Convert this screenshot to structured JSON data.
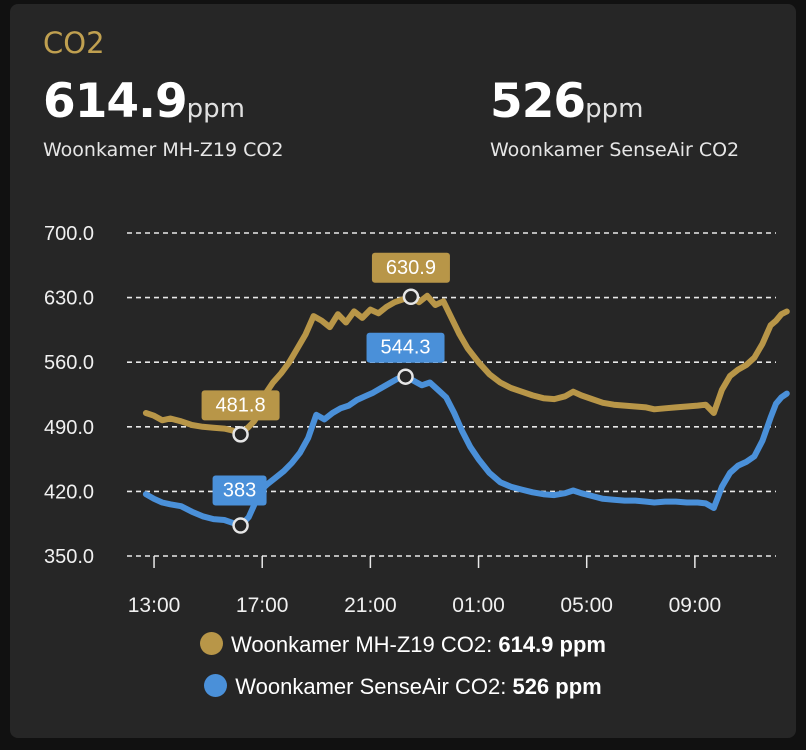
{
  "card": {
    "title": "CO2"
  },
  "stats": [
    {
      "value": "614.9",
      "unit": "ppm",
      "name": "Woonkamer MH-Z19 CO2"
    },
    {
      "value": "526",
      "unit": "ppm",
      "name": "Woonkamer SenseAir CO2"
    }
  ],
  "legend": [
    {
      "label": "Woonkamer MH-Z19 CO2:",
      "value": "614.9 ppm",
      "color": "#b89648"
    },
    {
      "label": "Woonkamer SenseAir CO2:",
      "value": "526 ppm",
      "color": "#4a90d9"
    }
  ],
  "chart_data": {
    "type": "line",
    "ylim": [
      350,
      700
    ],
    "yticks": [
      "700.0",
      "630.0",
      "560.0",
      "490.0",
      "420.0",
      "350.0"
    ],
    "ytick_values": [
      700,
      630,
      560,
      490,
      420,
      350
    ],
    "xlim": [
      12,
      36
    ],
    "xticks": [
      "13:00",
      "17:00",
      "21:00",
      "01:00",
      "05:00",
      "09:00"
    ],
    "xtick_values": [
      13,
      17,
      21,
      25,
      29,
      33
    ],
    "grid": true,
    "series": [
      {
        "name": "Woonkamer MH-Z19 CO2",
        "color": "#b89648",
        "points": [
          [
            12.7,
            505
          ],
          [
            13.0,
            502
          ],
          [
            13.3,
            497
          ],
          [
            13.6,
            499
          ],
          [
            14.0,
            496
          ],
          [
            14.4,
            492
          ],
          [
            14.8,
            490
          ],
          [
            15.2,
            489
          ],
          [
            15.6,
            488
          ],
          [
            15.9,
            486
          ],
          [
            16.2,
            482
          ],
          [
            16.5,
            490
          ],
          [
            16.7,
            496
          ],
          [
            16.9,
            505
          ],
          [
            17.1,
            525
          ],
          [
            17.4,
            538
          ],
          [
            17.7,
            548
          ],
          [
            18.0,
            560
          ],
          [
            18.3,
            575
          ],
          [
            18.6,
            590
          ],
          [
            18.9,
            610
          ],
          [
            19.2,
            605
          ],
          [
            19.5,
            598
          ],
          [
            19.8,
            612
          ],
          [
            20.1,
            603
          ],
          [
            20.4,
            615
          ],
          [
            20.7,
            608
          ],
          [
            21.0,
            617
          ],
          [
            21.3,
            613
          ],
          [
            21.6,
            620
          ],
          [
            21.9,
            625
          ],
          [
            22.2,
            628
          ],
          [
            22.5,
            630.9
          ],
          [
            22.8,
            625
          ],
          [
            23.1,
            632
          ],
          [
            23.4,
            622
          ],
          [
            23.7,
            626
          ],
          [
            24.0,
            608
          ],
          [
            24.3,
            590
          ],
          [
            24.6,
            575
          ],
          [
            25.0,
            560
          ],
          [
            25.4,
            547
          ],
          [
            25.8,
            538
          ],
          [
            26.2,
            532
          ],
          [
            26.6,
            528
          ],
          [
            27.0,
            524
          ],
          [
            27.4,
            521
          ],
          [
            27.8,
            520
          ],
          [
            28.2,
            523
          ],
          [
            28.5,
            528
          ],
          [
            28.8,
            524
          ],
          [
            29.2,
            520
          ],
          [
            29.6,
            516
          ],
          [
            30.0,
            514
          ],
          [
            30.4,
            513
          ],
          [
            30.8,
            512
          ],
          [
            31.2,
            511
          ],
          [
            31.5,
            509
          ],
          [
            31.9,
            510
          ],
          [
            32.3,
            511
          ],
          [
            32.7,
            512
          ],
          [
            33.1,
            513
          ],
          [
            33.4,
            514
          ],
          [
            33.7,
            505
          ],
          [
            34.0,
            530
          ],
          [
            34.3,
            545
          ],
          [
            34.6,
            552
          ],
          [
            34.9,
            557
          ],
          [
            35.2,
            565
          ],
          [
            35.5,
            580
          ],
          [
            35.8,
            600
          ],
          [
            36.0,
            605
          ],
          [
            36.2,
            612
          ],
          [
            36.4,
            614.9
          ]
        ]
      },
      {
        "name": "Woonkamer SenseAir CO2",
        "color": "#4a90d9",
        "points": [
          [
            12.7,
            417
          ],
          [
            13.0,
            412
          ],
          [
            13.3,
            408
          ],
          [
            13.6,
            406
          ],
          [
            14.0,
            404
          ],
          [
            14.4,
            398
          ],
          [
            14.8,
            393
          ],
          [
            15.2,
            390
          ],
          [
            15.6,
            389
          ],
          [
            15.9,
            386
          ],
          [
            16.2,
            383
          ],
          [
            16.5,
            392
          ],
          [
            16.7,
            405
          ],
          [
            16.9,
            420
          ],
          [
            17.2,
            428
          ],
          [
            17.5,
            435
          ],
          [
            17.8,
            442
          ],
          [
            18.1,
            451
          ],
          [
            18.4,
            462
          ],
          [
            18.7,
            478
          ],
          [
            19.0,
            503
          ],
          [
            19.3,
            498
          ],
          [
            19.6,
            505
          ],
          [
            19.9,
            510
          ],
          [
            20.2,
            513
          ],
          [
            20.5,
            519
          ],
          [
            20.8,
            523
          ],
          [
            21.1,
            527
          ],
          [
            21.4,
            532
          ],
          [
            21.7,
            537
          ],
          [
            22.0,
            542
          ],
          [
            22.3,
            544.3
          ],
          [
            22.6,
            540
          ],
          [
            22.9,
            535
          ],
          [
            23.2,
            538
          ],
          [
            23.5,
            530
          ],
          [
            23.8,
            522
          ],
          [
            24.1,
            505
          ],
          [
            24.4,
            485
          ],
          [
            24.7,
            468
          ],
          [
            25.0,
            455
          ],
          [
            25.4,
            440
          ],
          [
            25.8,
            430
          ],
          [
            26.2,
            425
          ],
          [
            26.6,
            422
          ],
          [
            27.0,
            419
          ],
          [
            27.4,
            417
          ],
          [
            27.8,
            416
          ],
          [
            28.2,
            418
          ],
          [
            28.5,
            421
          ],
          [
            28.8,
            418
          ],
          [
            29.2,
            415
          ],
          [
            29.6,
            412
          ],
          [
            30.0,
            411
          ],
          [
            30.4,
            410
          ],
          [
            30.8,
            410
          ],
          [
            31.2,
            409
          ],
          [
            31.5,
            408
          ],
          [
            31.9,
            409
          ],
          [
            32.3,
            409
          ],
          [
            32.7,
            408
          ],
          [
            33.1,
            408
          ],
          [
            33.4,
            407
          ],
          [
            33.7,
            402
          ],
          [
            34.0,
            425
          ],
          [
            34.3,
            440
          ],
          [
            34.6,
            448
          ],
          [
            34.9,
            452
          ],
          [
            35.2,
            458
          ],
          [
            35.5,
            475
          ],
          [
            35.8,
            500
          ],
          [
            36.0,
            515
          ],
          [
            36.2,
            522
          ],
          [
            36.4,
            526
          ]
        ]
      }
    ],
    "annotations": [
      {
        "series": 0,
        "x": 16.2,
        "y": 481.8,
        "label": "481.8",
        "placement": "above"
      },
      {
        "series": 0,
        "x": 22.5,
        "y": 630.9,
        "label": "630.9",
        "placement": "above"
      },
      {
        "series": 1,
        "x": 16.2,
        "y": 383,
        "label": "383",
        "placement": "above-right"
      },
      {
        "series": 1,
        "x": 22.3,
        "y": 544.3,
        "label": "544.3",
        "placement": "above"
      }
    ]
  }
}
